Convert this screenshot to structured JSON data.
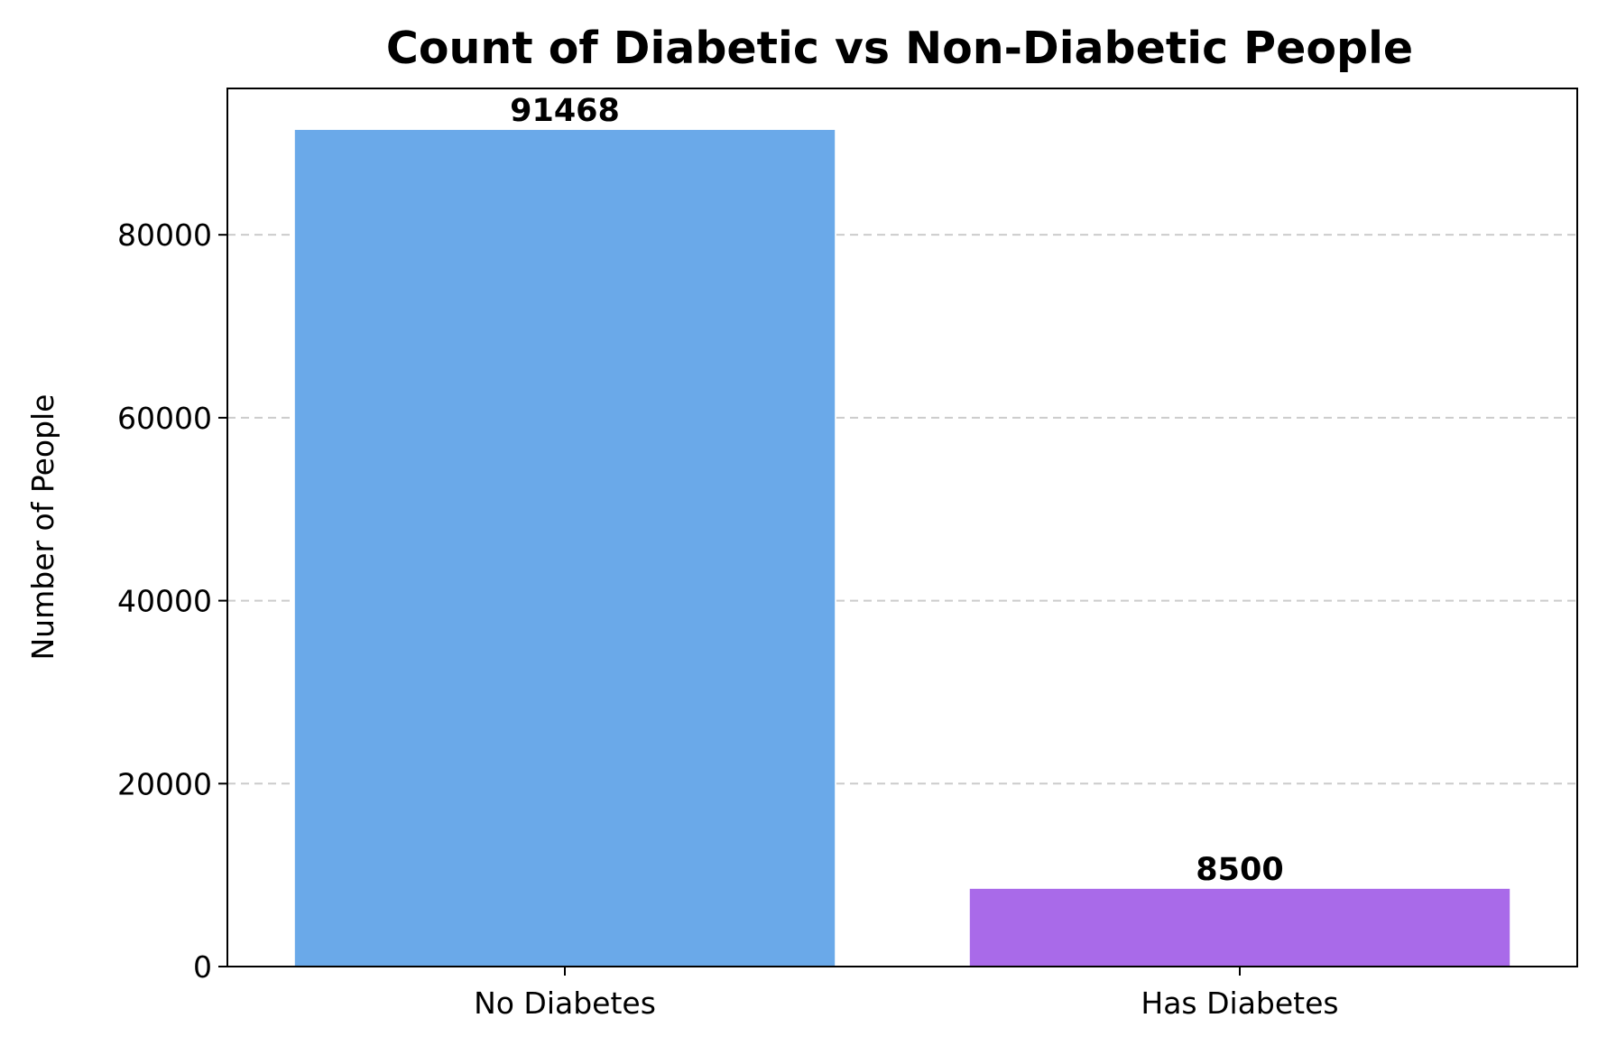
{
  "chart_data": {
    "type": "bar",
    "title": "Count of Diabetic vs Non-Diabetic People",
    "xlabel": "",
    "ylabel": "Number of People",
    "categories": [
      "No Diabetes",
      "Has Diabetes"
    ],
    "values": [
      91468,
      8500
    ],
    "value_labels": [
      "91468",
      "8500"
    ],
    "colors": [
      "#6aa9e9",
      "#a96ae9"
    ],
    "ylim": [
      0,
      96000
    ],
    "yticks": [
      0,
      20000,
      40000,
      60000,
      80000
    ],
    "ytick_labels": [
      "0",
      "20000",
      "40000",
      "60000",
      "80000"
    ],
    "grid": "y-dashed",
    "legend": "none"
  }
}
